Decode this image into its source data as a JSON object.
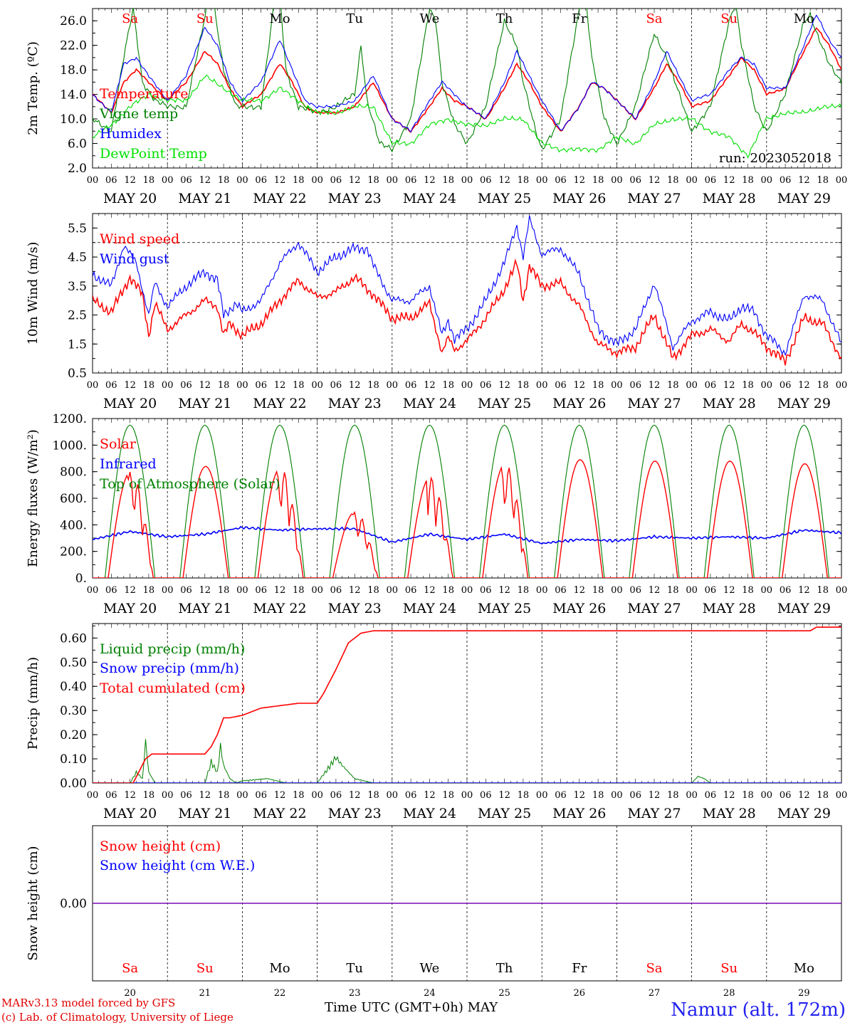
{
  "colors": {
    "red": "#ff0000",
    "darkgreen": "#008000",
    "blue": "#0000ff",
    "lightgreen": "#00e000",
    "purple": "#8000a0"
  },
  "x_axis": {
    "hour_ticks": [
      "00",
      "06",
      "12",
      "18"
    ],
    "end_tick": "00",
    "dates": [
      "MAY 20",
      "MAY 21",
      "MAY 22",
      "MAY 23",
      "MAY 24",
      "MAY 25",
      "MAY 26",
      "MAY 27",
      "MAY 28",
      "MAY 29"
    ],
    "weekdays": [
      "Sa",
      "Su",
      "Mo",
      "Tu",
      "We",
      "Th",
      "Fr",
      "Sa",
      "Su",
      "Mo"
    ],
    "weekday_colors": [
      "#ff0000",
      "#ff0000",
      "#000000",
      "#000000",
      "#000000",
      "#000000",
      "#000000",
      "#ff0000",
      "#ff0000",
      "#000000"
    ],
    "day_numbers": [
      "20",
      "21",
      "22",
      "23",
      "24",
      "25",
      "26",
      "27",
      "28",
      "29"
    ]
  },
  "footer": {
    "model_line": "MARv3.13 model forced by GFS",
    "copyright_line": "(c) Lab. of Climatology, University of Liege",
    "time_label": "Time UTC (GMT+0h) MAY",
    "station": "Namur (alt. 172m)"
  },
  "chart_data": [
    {
      "type": "line",
      "ylabel": "2m Temp. (ºC)",
      "ylim": [
        2,
        28
      ],
      "yticks": [
        "2.0",
        "6.0",
        "10.0",
        "14.0",
        "18.0",
        "22.0",
        "26.0"
      ],
      "annotation": "run: 2023052018",
      "series": [
        {
          "name": "Temperature",
          "color": "#ff0000",
          "x": [
            0,
            6,
            10,
            14,
            18,
            24,
            30,
            36,
            40,
            44,
            48,
            54,
            60,
            64,
            68,
            72,
            78,
            84,
            90,
            96,
            102,
            108,
            112,
            116,
            120,
            126,
            132,
            136,
            140,
            144,
            150,
            156,
            160,
            164,
            168,
            174,
            180,
            184,
            188,
            192,
            198,
            204,
            208,
            212,
            216,
            222,
            228,
            232,
            236,
            240
          ],
          "y": [
            14,
            11,
            16,
            18,
            16,
            13,
            16,
            21,
            19,
            15,
            12,
            14,
            19,
            16,
            12,
            11,
            11,
            12,
            16,
            10,
            8,
            12,
            15,
            13,
            12,
            10,
            15,
            19,
            16,
            12,
            8,
            12,
            16,
            15,
            13,
            10,
            15,
            19,
            16,
            12,
            13,
            17,
            20,
            18,
            14,
            15,
            21,
            25,
            22,
            18
          ]
        },
        {
          "name": "Vigne temp",
          "color": "#008000",
          "x": [
            0,
            6,
            10,
            13,
            16,
            20,
            24,
            30,
            35,
            38,
            42,
            46,
            48,
            54,
            58,
            60,
            62,
            66,
            72,
            78,
            84,
            86,
            88,
            92,
            96,
            102,
            108,
            110,
            112,
            116,
            120,
            126,
            132,
            136,
            138,
            142,
            144,
            150,
            156,
            158,
            160,
            164,
            168,
            174,
            180,
            184,
            188,
            192,
            198,
            204,
            206,
            208,
            212,
            216,
            222,
            228,
            230,
            232,
            236,
            240
          ],
          "y": [
            10,
            8,
            20,
            28,
            16,
            13,
            12,
            12,
            24,
            32,
            18,
            12,
            12,
            12,
            28,
            30,
            18,
            12,
            11,
            12,
            14,
            22,
            13,
            6,
            5,
            10,
            28,
            26,
            16,
            9,
            6,
            12,
            26,
            22,
            16,
            8,
            5,
            10,
            28,
            30,
            20,
            10,
            6,
            12,
            24,
            20,
            14,
            8,
            12,
            26,
            29,
            22,
            12,
            8,
            14,
            26,
            27,
            24,
            19,
            16
          ]
        },
        {
          "name": "Humidex",
          "color": "#0000ff",
          "x": [
            0,
            6,
            10,
            14,
            18,
            24,
            30,
            36,
            40,
            44,
            48,
            54,
            60,
            64,
            68,
            72,
            78,
            84,
            90,
            96,
            102,
            108,
            112,
            116,
            120,
            126,
            132,
            136,
            140,
            144,
            150,
            156,
            160,
            164,
            168,
            174,
            180,
            184,
            188,
            192,
            198,
            204,
            208,
            212,
            216,
            222,
            228,
            232,
            236,
            240
          ],
          "y": [
            14,
            11,
            19,
            20,
            17,
            13,
            17,
            25,
            22,
            16,
            13,
            16,
            23,
            18,
            13,
            12,
            12,
            13,
            17,
            10,
            8,
            13,
            16,
            14,
            12,
            10,
            16,
            21,
            17,
            13,
            8,
            12,
            16,
            15,
            13,
            10,
            16,
            21,
            17,
            13,
            14,
            18,
            20,
            19,
            15,
            15,
            22,
            27,
            23,
            20
          ]
        },
        {
          "name": "DewPoint Temp",
          "color": "#00e000",
          "x": [
            0,
            6,
            12,
            18,
            24,
            30,
            36,
            42,
            48,
            54,
            60,
            66,
            72,
            78,
            84,
            90,
            96,
            102,
            108,
            114,
            120,
            126,
            132,
            138,
            144,
            150,
            156,
            162,
            168,
            174,
            180,
            186,
            192,
            198,
            204,
            210,
            216,
            222,
            228,
            234,
            240
          ],
          "y": [
            7,
            9,
            12,
            14,
            13,
            13,
            17,
            15,
            13,
            13,
            15,
            13,
            11,
            11,
            12,
            12,
            6,
            6,
            9,
            10,
            9,
            9,
            10,
            10,
            6,
            5,
            5,
            5,
            7,
            6,
            9,
            10,
            10,
            8,
            7,
            4,
            10,
            11,
            11,
            12,
            12
          ]
        }
      ]
    },
    {
      "type": "line",
      "ylabel": "10m Wind (m/s)",
      "ylim": [
        0.5,
        6
      ],
      "yticks": [
        "0.5",
        "1.5",
        "2.5",
        "3.5",
        "4.5",
        "5.5"
      ],
      "ref_line": 5.0,
      "series": [
        {
          "name": "Wind speed",
          "color": "#ff0000",
          "x": [
            0,
            6,
            12,
            16,
            18,
            20,
            24,
            30,
            36,
            40,
            42,
            44,
            48,
            54,
            60,
            66,
            72,
            78,
            84,
            88,
            90,
            96,
            102,
            108,
            112,
            114,
            116,
            120,
            126,
            132,
            136,
            138,
            140,
            144,
            150,
            156,
            162,
            168,
            174,
            180,
            186,
            192,
            198,
            204,
            208,
            212,
            216,
            222,
            228,
            234,
            240
          ],
          "y": [
            3,
            2.6,
            3.8,
            3.2,
            1.8,
            2.9,
            2.0,
            2.5,
            3.0,
            2.8,
            1.8,
            2.2,
            1.8,
            2.2,
            3.0,
            3.7,
            3.1,
            3.3,
            3.8,
            3.4,
            3.2,
            2.4,
            2.4,
            2.9,
            1.2,
            1.7,
            1.3,
            1.6,
            2.4,
            3.4,
            4.3,
            3.0,
            4.2,
            3.5,
            3.6,
            2.8,
            1.5,
            1.2,
            1.4,
            2.5,
            1.0,
            1.8,
            2.0,
            1.6,
            2.2,
            1.9,
            1.4,
            0.9,
            2.4,
            2.2,
            1.0
          ]
        },
        {
          "name": "Wind gust",
          "color": "#0000ff",
          "x": [
            0,
            6,
            10,
            14,
            18,
            20,
            24,
            30,
            36,
            40,
            42,
            46,
            48,
            54,
            60,
            66,
            72,
            78,
            84,
            88,
            90,
            96,
            102,
            108,
            112,
            114,
            116,
            120,
            126,
            132,
            136,
            138,
            140,
            144,
            150,
            156,
            162,
            168,
            174,
            180,
            186,
            192,
            198,
            204,
            208,
            212,
            216,
            222,
            228,
            234,
            240
          ],
          "y": [
            3.9,
            3.5,
            4.9,
            4.3,
            2.5,
            3.6,
            2.8,
            3.5,
            4.0,
            3.7,
            2.5,
            2.9,
            2.6,
            3.0,
            4.3,
            5.0,
            4.0,
            4.5,
            4.8,
            4.8,
            4.2,
            3.0,
            3.0,
            3.5,
            1.8,
            2.3,
            1.7,
            2.0,
            3.0,
            4.3,
            5.6,
            4.5,
            5.8,
            4.6,
            4.8,
            3.9,
            2.0,
            1.5,
            2.0,
            3.6,
            1.4,
            2.3,
            2.6,
            2.3,
            2.8,
            2.6,
            1.8,
            1.2,
            3.2,
            3.0,
            1.5
          ]
        }
      ]
    },
    {
      "type": "line",
      "ylabel": "Energy fluxes (W/m²)",
      "ylim": [
        0,
        1200
      ],
      "yticks": [
        "0.",
        "200.",
        "400.",
        "600.",
        "800.",
        "1000.",
        "1200."
      ],
      "series": [
        {
          "name": "Solar",
          "color": "#ff0000",
          "day_peaks": [
            800,
            840,
            830,
            500,
            760,
            860,
            890,
            880,
            880,
            860
          ],
          "choppy": [
            true,
            false,
            true,
            true,
            true,
            true,
            false,
            false,
            false,
            false
          ]
        },
        {
          "name": "Infrared",
          "color": "#0000ff",
          "x": [
            0,
            12,
            24,
            36,
            48,
            60,
            72,
            84,
            96,
            108,
            120,
            132,
            144,
            156,
            168,
            180,
            192,
            204,
            216,
            228,
            240
          ],
          "y": [
            290,
            350,
            310,
            330,
            380,
            360,
            370,
            370,
            270,
            330,
            290,
            330,
            260,
            290,
            280,
            310,
            300,
            310,
            300,
            360,
            340
          ]
        },
        {
          "name": "Top of Atmosphere (Solar)",
          "color": "#008000",
          "peak": 1150,
          "sunrise_h": 4,
          "sunset_h": 20
        }
      ]
    },
    {
      "type": "line",
      "ylabel": "Precip (mm/h)",
      "ylim": [
        0,
        0.66
      ],
      "yticks": [
        "0.00",
        "0.10",
        "0.20",
        "0.30",
        "0.40",
        "0.50",
        "0.60"
      ],
      "series": [
        {
          "name": "Liquid precip (mm/h)",
          "color": "#008000",
          "x": [
            0,
            12,
            14,
            16,
            17,
            18,
            20,
            36,
            38,
            40,
            41,
            42,
            44,
            46,
            48,
            56,
            62,
            72,
            76,
            78,
            80,
            84,
            90,
            192,
            194,
            196,
            198,
            200,
            240
          ],
          "y": [
            0,
            0,
            0.05,
            0.02,
            0.19,
            0.05,
            0,
            0,
            0.1,
            0.05,
            0.17,
            0.08,
            0.02,
            0,
            0.01,
            0.02,
            0,
            0,
            0.08,
            0.12,
            0.08,
            0.02,
            0,
            0,
            0.03,
            0.02,
            0,
            0,
            0
          ]
        },
        {
          "name": "Snow precip (mm/h)",
          "color": "#0000ff",
          "x": [
            0,
            240
          ],
          "y": [
            0,
            0
          ]
        },
        {
          "name": "Total cumulated (cm)",
          "color": "#ff0000",
          "x": [
            0,
            13,
            15,
            17,
            19,
            22,
            36,
            38,
            40,
            42,
            44,
            48,
            54,
            60,
            66,
            72,
            74,
            78,
            82,
            86,
            90,
            230,
            232,
            240
          ],
          "y": [
            0,
            0,
            0.05,
            0.1,
            0.12,
            0.12,
            0.12,
            0.15,
            0.2,
            0.27,
            0.27,
            0.28,
            0.31,
            0.32,
            0.33,
            0.33,
            0.37,
            0.47,
            0.58,
            0.62,
            0.63,
            0.63,
            0.645,
            0.645
          ]
        }
      ]
    },
    {
      "type": "line",
      "ylabel": "Snow height (cm)",
      "ylim": [
        -1,
        1
      ],
      "yticks": [
        "0.00"
      ],
      "series": [
        {
          "name": "Snow height (cm)",
          "color": "#ff0000",
          "x": [
            0,
            240
          ],
          "y": [
            0,
            0
          ]
        },
        {
          "name": "Snow height (cm W.E.)",
          "color": "#0000ff",
          "x": [
            0,
            240
          ],
          "y": [
            0,
            0
          ]
        }
      ]
    }
  ]
}
